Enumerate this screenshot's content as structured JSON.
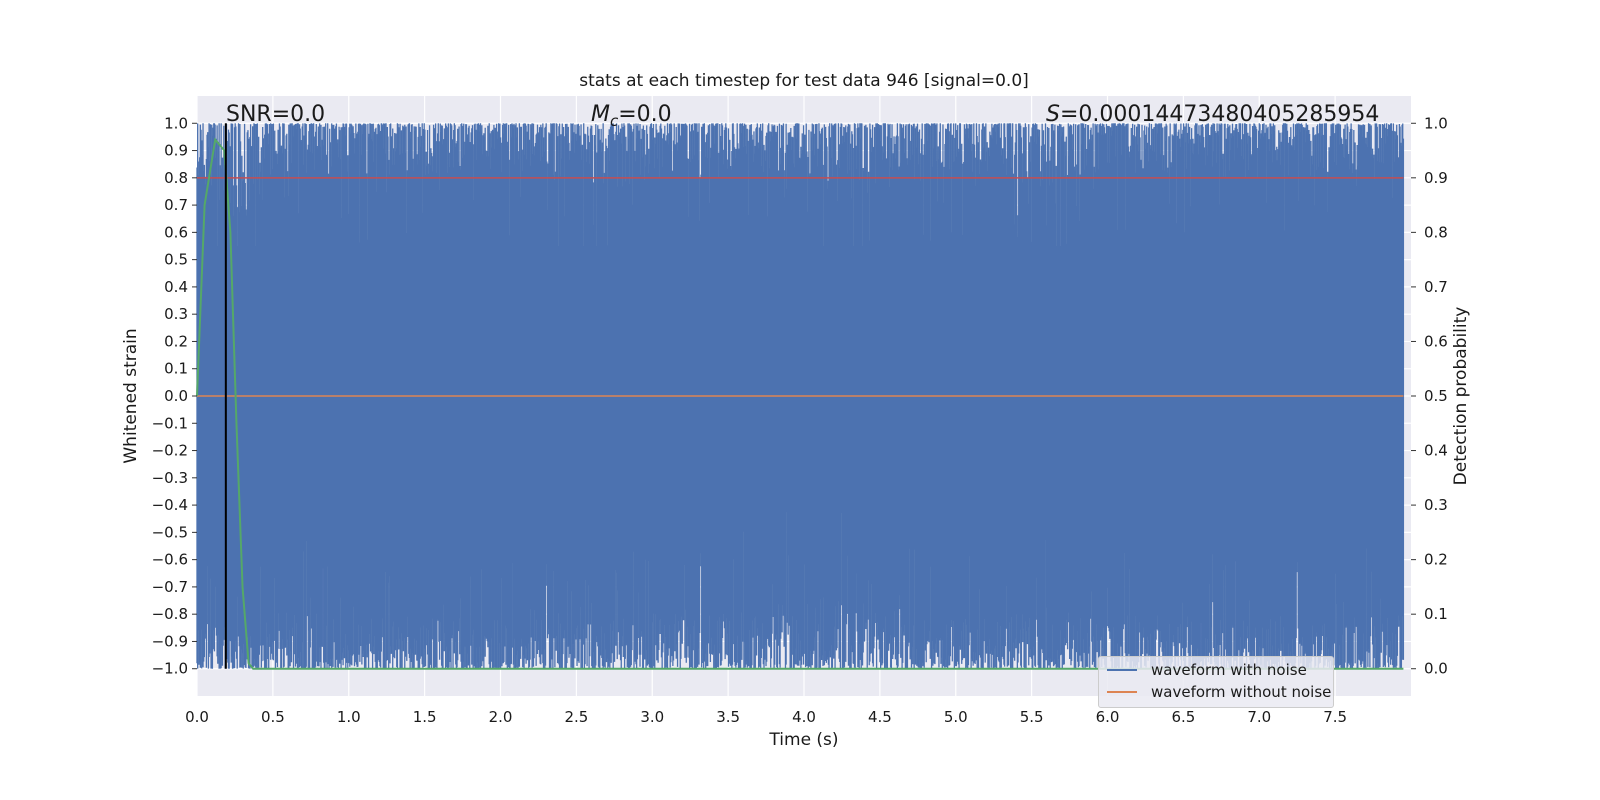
{
  "chart_data": {
    "type": "line",
    "title": "stats at each timestep for test data 946 [signal=0.0]",
    "xlabel": "Time (s)",
    "ylabel": "Whitened strain",
    "y2label": "Detection probability",
    "xlim": [
      0.0,
      8.0
    ],
    "ylim": [
      -1.1,
      1.1
    ],
    "y2lim": [
      -0.05,
      1.05
    ],
    "x_ticks": [
      0.0,
      0.5,
      1.0,
      1.5,
      2.0,
      2.5,
      3.0,
      3.5,
      4.0,
      4.5,
      5.0,
      5.5,
      6.0,
      6.5,
      7.0,
      7.5
    ],
    "y_ticks": [
      1.0,
      0.9,
      0.8,
      0.7,
      0.6,
      0.5,
      0.4,
      0.3,
      0.2,
      0.1,
      0.0,
      -0.1,
      -0.2,
      -0.3,
      -0.4,
      -0.5,
      -0.6,
      -0.7,
      -0.8,
      -0.9,
      -1.0
    ],
    "y2_ticks": [
      1.0,
      0.9,
      0.8,
      0.7,
      0.6,
      0.5,
      0.4,
      0.3,
      0.2,
      0.1,
      0.0
    ],
    "grid": true,
    "legend_position": "lower-right",
    "annotations": {
      "snr": "SNR=0.0",
      "mc": "=0.0",
      "mc_symbol": "M",
      "mc_subscript": "c",
      "s": "=0.00014473480405285954",
      "s_symbol": "S"
    },
    "series": [
      {
        "name": "waveform with noise",
        "color": "#4c72b0",
        "description_range": [
          -1.0,
          1.0
        ],
        "envelope": {
          "x": [
            0.0,
            0.3,
            0.5,
            1.0,
            2.0,
            2.7,
            3.0,
            4.0,
            4.2,
            5.0,
            5.6,
            6.0,
            7.0,
            7.5,
            7.95
          ],
          "upper_min": [
            0.55,
            0.15,
            0.6,
            0.55,
            0.6,
            0.45,
            0.55,
            0.55,
            0.35,
            0.6,
            0.45,
            0.6,
            0.55,
            0.55,
            0.7
          ],
          "lower_max": [
            -0.6,
            -0.65,
            -0.5,
            -0.55,
            -0.6,
            -0.6,
            -0.55,
            -0.4,
            -0.4,
            -0.6,
            -0.5,
            -0.55,
            -0.55,
            -0.6,
            -0.45
          ]
        }
      },
      {
        "name": "waveform without noise",
        "color": "#dd8452",
        "x": [
          0.0,
          7.95
        ],
        "y": [
          0.0,
          0.0
        ]
      },
      {
        "name": "",
        "color": "#c44e52",
        "axis": "right",
        "x": [
          0.0,
          7.95
        ],
        "y": [
          0.9,
          0.9
        ]
      },
      {
        "name": "",
        "color": "#55a868",
        "axis": "right",
        "x": [
          0.0,
          0.05,
          0.12,
          0.18,
          0.22,
          0.26,
          0.3,
          0.34,
          0.37,
          0.5,
          7.95
        ],
        "y": [
          0.5,
          0.85,
          0.97,
          0.95,
          0.8,
          0.45,
          0.15,
          0.01,
          0.0,
          0.0,
          0.0
        ]
      }
    ],
    "vertical_line": {
      "x": 0.19,
      "color": "#000000"
    }
  }
}
